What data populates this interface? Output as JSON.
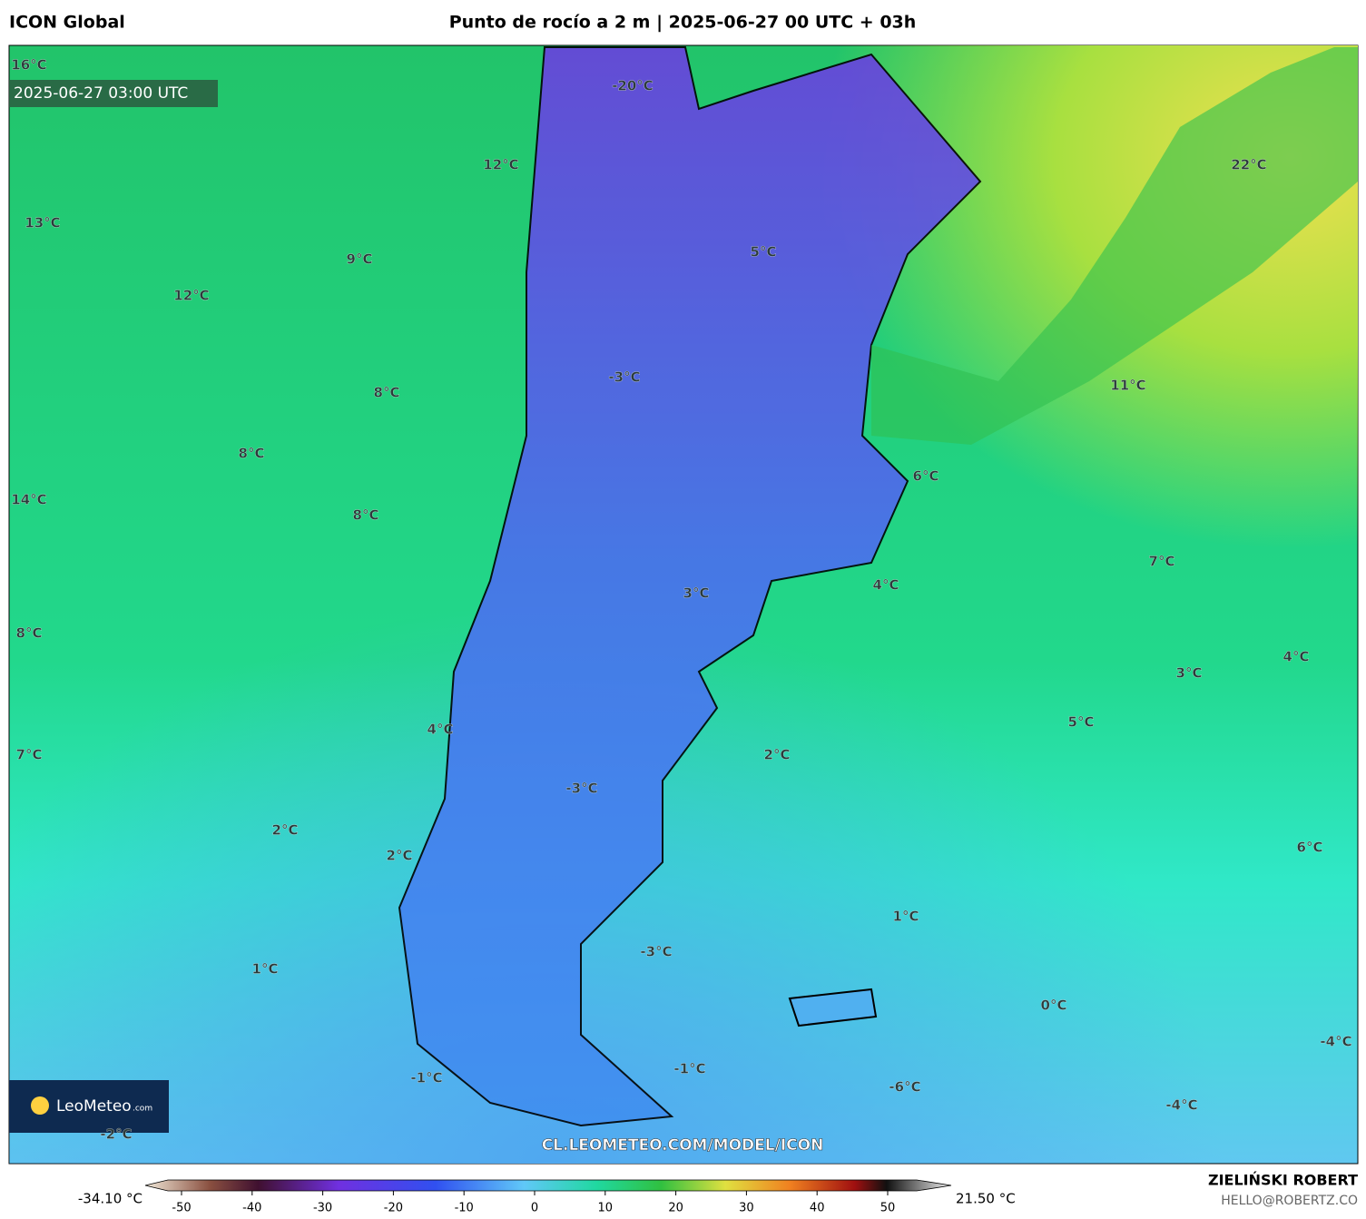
{
  "header": {
    "model": "ICON Global",
    "title": "Punto de rocío a 2 m | 2025-06-27 00 UTC + 03h"
  },
  "map": {
    "timestamp": "2025-06-27 03:00 UTC",
    "url": "CL.LEOMETEO.COM/MODEL/ICON",
    "logo": "LeoMeteo",
    "logo_suffix": ".com",
    "labels": [
      "16°C",
      "12°C",
      "13°C",
      "9°C",
      "12°C",
      "-20°C",
      "22°C",
      "5°C",
      "-3°C",
      "8°C",
      "11°C",
      "8°C",
      "6°C",
      "14°C",
      "8°C",
      "7°C",
      "4°C",
      "3°C",
      "8°C",
      "4°C",
      "3°C",
      "4°C",
      "5°C",
      "7°C",
      "2°C",
      "-3°C",
      "2°C",
      "2°C",
      "6°C",
      "1°C",
      "-3°C",
      "1°C",
      "0°C",
      "-4°C",
      "-1°C",
      "-1°C",
      "-6°C",
      "-4°C",
      "-2°C"
    ]
  },
  "colorbar": {
    "min_label": "-34.10 °C",
    "max_label": "21.50 °C",
    "ticks": [
      -50,
      -40,
      -30,
      -20,
      -10,
      0,
      10,
      20,
      30,
      40,
      50
    ]
  },
  "footer": {
    "author": "ZIELIŃSKI ROBERT",
    "contact": "HELLO@ROBERTZ.CO"
  }
}
